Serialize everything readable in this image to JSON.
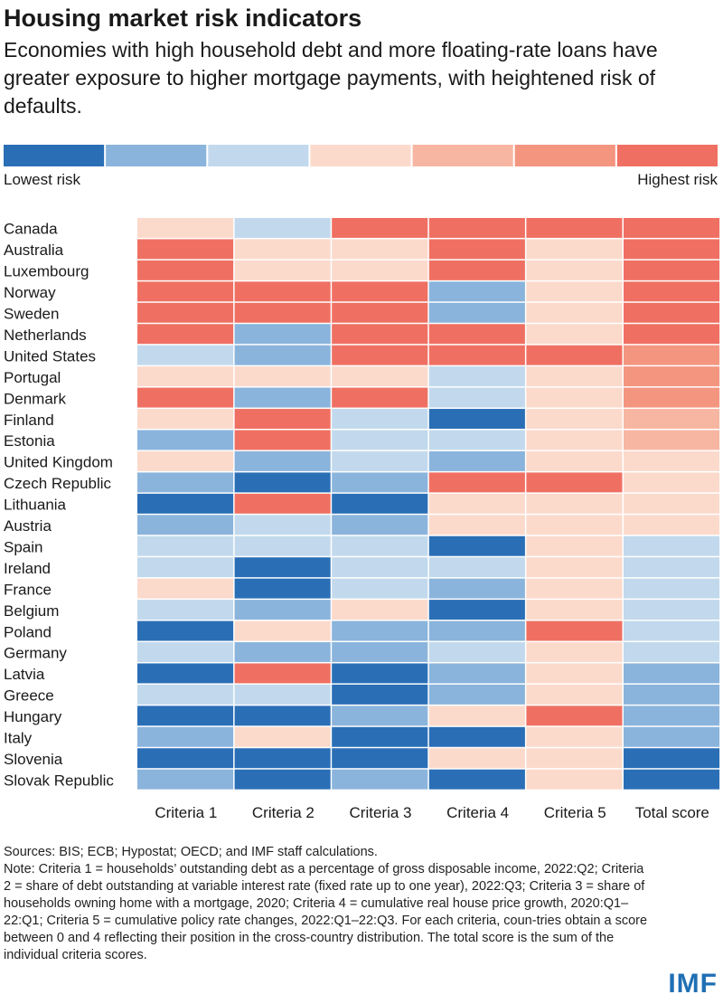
{
  "title": "Housing market risk indicators",
  "subtitle": "Economies with high household debt and more floating-rate loans have greater exposure to higher mortgage payments, with heightened risk of defaults.",
  "palette": [
    "#2a6fb6",
    "#8ab4dc",
    "#c2d9ed",
    "#fbdacc",
    "#f7b6a2",
    "#f49580",
    "#ef7062"
  ],
  "legend": {
    "low_label": "Lowest risk",
    "high_label": "Highest risk"
  },
  "chart_data": {
    "type": "heatmap",
    "columns": [
      "Criteria 1",
      "Criteria 2",
      "Criteria 3",
      "Criteria 4",
      "Criteria 5",
      "Total score"
    ],
    "rows": [
      "Canada",
      "Australia",
      "Luxembourg",
      "Norway",
      "Sweden",
      "Netherlands",
      "United States",
      "Portugal",
      "Denmark",
      "Finland",
      "Estonia",
      "United Kingdom",
      "Czech Republic",
      "Lithuania",
      "Austria",
      "Spain",
      "Ireland",
      "France",
      "Belgium",
      "Poland",
      "Germany",
      "Latvia",
      "Greece",
      "Hungary",
      "Italy",
      "Slovenia",
      "Slovak Republic"
    ],
    "values": [
      [
        3,
        2,
        6,
        6,
        6,
        6
      ],
      [
        6,
        3,
        3,
        6,
        3,
        6
      ],
      [
        6,
        3,
        3,
        6,
        3,
        6
      ],
      [
        6,
        6,
        6,
        1,
        3,
        6
      ],
      [
        6,
        6,
        6,
        1,
        3,
        6
      ],
      [
        6,
        1,
        6,
        6,
        3,
        6
      ],
      [
        2,
        1,
        6,
        6,
        6,
        5
      ],
      [
        3,
        3,
        3,
        2,
        3,
        5
      ],
      [
        6,
        1,
        6,
        2,
        3,
        5
      ],
      [
        3,
        6,
        2,
        0,
        3,
        4
      ],
      [
        1,
        6,
        2,
        2,
        3,
        4
      ],
      [
        3,
        1,
        2,
        1,
        3,
        3
      ],
      [
        1,
        0,
        1,
        6,
        6,
        3
      ],
      [
        0,
        6,
        0,
        3,
        3,
        3
      ],
      [
        1,
        2,
        1,
        3,
        3,
        3
      ],
      [
        2,
        2,
        2,
        0,
        3,
        2
      ],
      [
        2,
        0,
        2,
        2,
        3,
        2
      ],
      [
        3,
        0,
        2,
        1,
        3,
        2
      ],
      [
        2,
        1,
        3,
        0,
        3,
        2
      ],
      [
        0,
        3,
        1,
        1,
        6,
        2
      ],
      [
        2,
        1,
        1,
        2,
        3,
        2
      ],
      [
        0,
        6,
        0,
        1,
        3,
        1
      ],
      [
        2,
        2,
        0,
        1,
        3,
        1
      ],
      [
        0,
        0,
        1,
        3,
        6,
        1
      ],
      [
        1,
        3,
        0,
        0,
        3,
        1
      ],
      [
        0,
        0,
        0,
        3,
        3,
        0
      ],
      [
        1,
        0,
        1,
        0,
        3,
        0
      ]
    ]
  },
  "notes": {
    "sources": "Sources: BIS; ECB; Hypostat; OECD; and IMF staff calculations.",
    "note": "Note: Criteria 1 = households’ outstanding debt as a percentage of gross disposable income, 2022:Q2; Criteria 2 = share of debt outstanding at variable interest rate (fixed rate up to one year), 2022:Q3; Criteria 3 = share of households owning home with a mortgage, 2020; Criteria 4 = cumulative real house price growth, 2020:Q1–22:Q1; Criteria 5 = cumulative policy rate changes, 2022:Q1–22:Q3. For each criteria, coun-tries obtain a score between 0 and 4 reflecting their position in the cross-country distribution. The total score is the sum of the individual criteria scores."
  },
  "logo": "IMF"
}
